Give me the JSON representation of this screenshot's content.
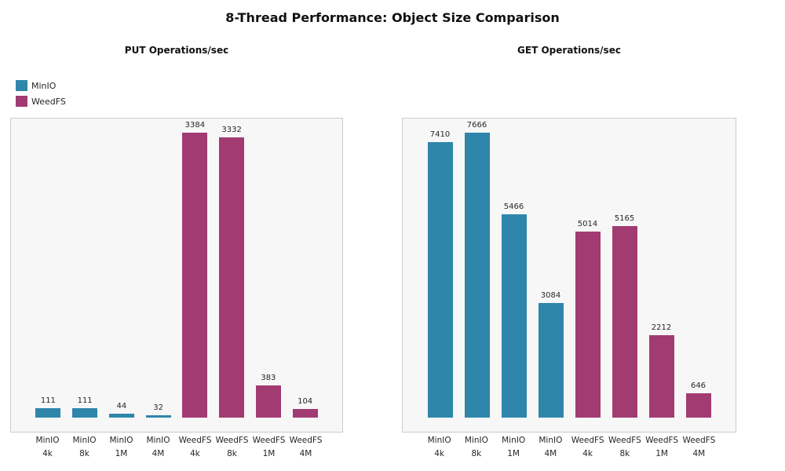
{
  "title": "8-Thread Performance: Object Size Comparison",
  "legend": [
    {
      "label": "MinIO",
      "color": "#2E86AB"
    },
    {
      "label": "WeedFS",
      "color": "#A23B72"
    }
  ],
  "panel_style": {
    "background": "#f7f7f7",
    "border": "#cccccc"
  },
  "chart_data": [
    {
      "type": "bar",
      "title": "PUT Operations/sec",
      "categories": [
        [
          "MinIO",
          "4k"
        ],
        [
          "MinIO",
          "8k"
        ],
        [
          "MinIO",
          "1M"
        ],
        [
          "MinIO",
          "4M"
        ],
        [
          "WeedFS",
          "4k"
        ],
        [
          "WeedFS",
          "8k"
        ],
        [
          "WeedFS",
          "1M"
        ],
        [
          "WeedFS",
          "4M"
        ]
      ],
      "values": [
        111,
        111,
        44,
        32,
        3384,
        3332,
        383,
        104
      ],
      "bar_series": [
        "MinIO",
        "MinIO",
        "MinIO",
        "MinIO",
        "WeedFS",
        "WeedFS",
        "WeedFS",
        "WeedFS"
      ],
      "value_labels": [
        "111",
        "111",
        "44",
        "32",
        "3384",
        "3332",
        "383",
        "104"
      ],
      "xlabel": "",
      "ylabel": "",
      "ylim": [
        -169,
        3553
      ],
      "grid": false,
      "legend_position": "upper-left-of-figure"
    },
    {
      "type": "bar",
      "title": "GET Operations/sec",
      "categories": [
        [
          "MinIO",
          "4k"
        ],
        [
          "MinIO",
          "8k"
        ],
        [
          "MinIO",
          "1M"
        ],
        [
          "MinIO",
          "4M"
        ],
        [
          "WeedFS",
          "4k"
        ],
        [
          "WeedFS",
          "8k"
        ],
        [
          "WeedFS",
          "1M"
        ],
        [
          "WeedFS",
          "4M"
        ]
      ],
      "values": [
        7410,
        7666,
        5466,
        3084,
        5014,
        5165,
        2212,
        646
      ],
      "bar_series": [
        "MinIO",
        "MinIO",
        "MinIO",
        "MinIO",
        "WeedFS",
        "WeedFS",
        "WeedFS",
        "WeedFS"
      ],
      "value_labels": [
        "7410",
        "7666",
        "5466",
        "3084",
        "5014",
        "5165",
        "2212",
        "646"
      ],
      "xlabel": "",
      "ylabel": "",
      "ylim": [
        -383,
        8049
      ],
      "grid": false,
      "legend_position": "upper-left-of-figure"
    }
  ]
}
